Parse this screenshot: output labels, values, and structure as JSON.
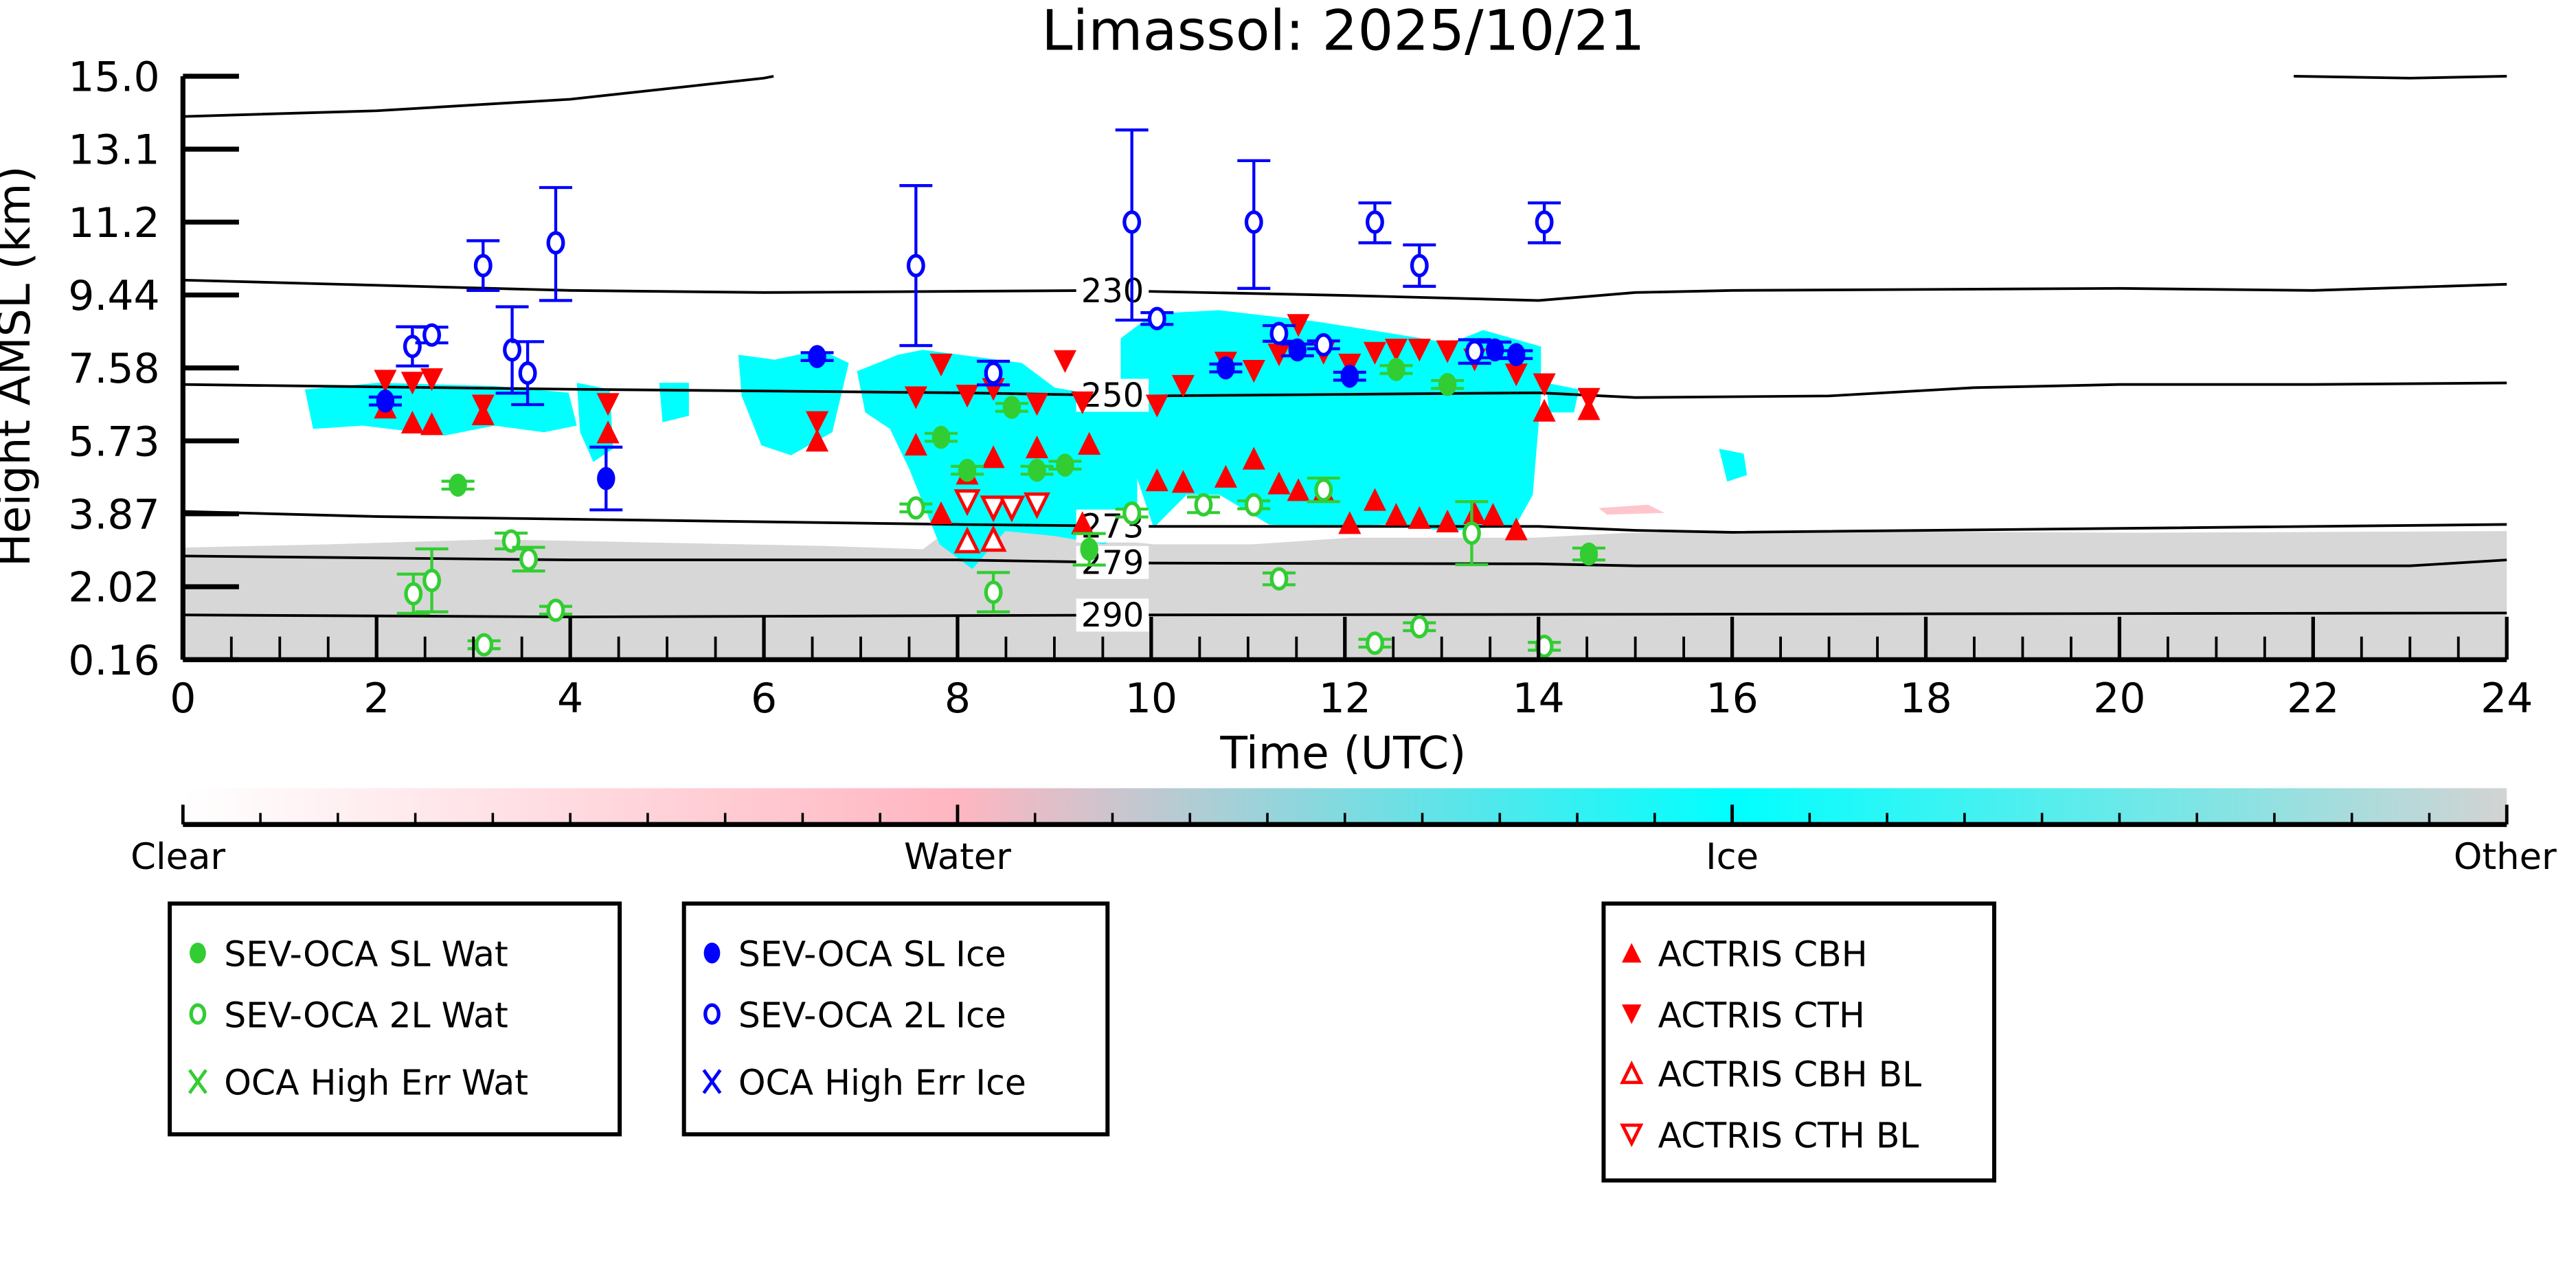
{
  "chart_data": {
    "type": "scatter",
    "title": "Limassol: 2025/10/21",
    "xlabel": "Time (UTC)",
    "ylabel": "Height AMSL (km)",
    "xlim": [
      0,
      24
    ],
    "xticks": [
      0,
      2,
      4,
      6,
      8,
      10,
      12,
      14,
      16,
      18,
      20,
      22,
      24
    ],
    "xtick_labels": [
      "0",
      "2",
      "4",
      "6",
      "8",
      "10",
      "12",
      "14",
      "16",
      "18",
      "20",
      "22",
      "24"
    ],
    "yticks": [
      0.16,
      2.02,
      3.87,
      5.73,
      7.58,
      9.44,
      11.2,
      13.1,
      15.0
    ],
    "ytick_labels": [
      "0.16",
      "2.02",
      "3.87",
      "5.73",
      "7.58",
      "9.44",
      "11.2",
      "13.1",
      "15.0"
    ],
    "ylim": [
      0.16,
      15.0
    ],
    "colors": {
      "water": "#32cd32",
      "ice": "#0000ff",
      "actris": "#ff0000",
      "cb_clear": "#ffffff",
      "cb_water": "#ffb6c1",
      "cb_ice": "#00ffff",
      "cb_other": "#d3d3d3"
    },
    "series": [
      {
        "name": "SEV-OCA SL Wat",
        "marker": "filled-circle",
        "color": "#32cd32",
        "points": [
          [
            2.84,
            4.6,
            0.1
          ],
          [
            7.83,
            5.82,
            0.1
          ],
          [
            8.1,
            4.98,
            0.1
          ],
          [
            8.56,
            6.58,
            0.1
          ],
          [
            8.82,
            4.98,
            0.1
          ],
          [
            9.11,
            5.11,
            0.1
          ],
          [
            9.36,
            2.97,
            0.4
          ],
          [
            12.53,
            7.54,
            0.1
          ],
          [
            13.06,
            7.16,
            0.1
          ],
          [
            14.52,
            2.85,
            0.15
          ]
        ]
      },
      {
        "name": "SEV-OCA 2L Wat",
        "marker": "open-circle",
        "color": "#32cd32",
        "points": [
          [
            2.38,
            1.84,
            0.5
          ],
          [
            2.57,
            2.18,
            0.8
          ],
          [
            3.11,
            0.54,
            0.1
          ],
          [
            3.39,
            3.18,
            0.2
          ],
          [
            3.57,
            2.72,
            0.3
          ],
          [
            3.85,
            1.42,
            0.1
          ],
          [
            7.57,
            4.02,
            0.1
          ],
          [
            8.37,
            1.88,
            0.5
          ],
          [
            9.8,
            3.89,
            0.1
          ],
          [
            10.54,
            4.1,
            0.2
          ],
          [
            11.06,
            4.1,
            0.1
          ],
          [
            11.32,
            2.22,
            0.15
          ],
          [
            11.78,
            4.48,
            0.3
          ],
          [
            12.31,
            0.58,
            0.1
          ],
          [
            12.77,
            1.0,
            0.1
          ],
          [
            13.31,
            3.38,
            0.8
          ],
          [
            14.06,
            0.5,
            0.1
          ]
        ]
      },
      {
        "name": "OCA High Err Wat",
        "marker": "x",
        "color": "#32cd32",
        "points": []
      },
      {
        "name": "SEV-OCA SL Ice",
        "marker": "filled-circle",
        "color": "#0000ff",
        "points": [
          [
            2.09,
            6.74,
            0.1
          ],
          [
            4.37,
            4.77,
            0.8
          ],
          [
            6.55,
            7.87,
            0.1
          ],
          [
            10.77,
            7.58,
            0.1
          ],
          [
            11.51,
            8.04,
            0.15
          ],
          [
            12.05,
            7.37,
            0.1
          ],
          [
            13.55,
            8.04,
            0.2
          ],
          [
            13.77,
            7.92,
            0.1
          ]
        ]
      },
      {
        "name": "SEV-OCA 2L Ice",
        "marker": "open-circle",
        "color": "#0000ff",
        "points": [
          [
            2.37,
            8.13,
            0.5
          ],
          [
            2.57,
            8.42,
            0.2
          ],
          [
            3.1,
            10.15,
            0.6
          ],
          [
            3.4,
            8.04,
            1.1
          ],
          [
            3.56,
            7.45,
            0.8
          ],
          [
            3.85,
            10.7,
            1.4
          ],
          [
            7.57,
            10.15,
            2.0
          ],
          [
            8.37,
            7.45,
            0.3
          ],
          [
            9.8,
            11.2,
            2.4
          ],
          [
            10.06,
            8.84,
            0.15
          ],
          [
            11.06,
            11.2,
            1.6
          ],
          [
            11.32,
            8.46,
            0.2
          ],
          [
            11.78,
            8.17,
            0.1
          ],
          [
            12.31,
            11.2,
            0.5
          ],
          [
            12.77,
            10.15,
            0.5
          ],
          [
            13.34,
            8.0,
            0.3
          ],
          [
            14.06,
            11.2,
            0.5
          ]
        ]
      },
      {
        "name": "OCA High Err Ice",
        "marker": "x",
        "color": "#0000ff",
        "points": []
      },
      {
        "name": "ACTRIS CBH",
        "marker": "filled-triangle-up",
        "color": "#ff0000",
        "points": [
          [
            2.09,
            6.58
          ],
          [
            2.37,
            6.2
          ],
          [
            2.57,
            6.16
          ],
          [
            3.1,
            6.41
          ],
          [
            4.39,
            5.95
          ],
          [
            6.55,
            5.74
          ],
          [
            7.57,
            5.64
          ],
          [
            7.83,
            3.89
          ],
          [
            8.1,
            4.9
          ],
          [
            8.37,
            5.32
          ],
          [
            8.82,
            5.57
          ],
          [
            9.29,
            3.64
          ],
          [
            9.36,
            5.66
          ],
          [
            10.06,
            4.73
          ],
          [
            10.33,
            4.69
          ],
          [
            10.77,
            4.82
          ],
          [
            11.06,
            5.28
          ],
          [
            11.32,
            4.65
          ],
          [
            11.52,
            4.48
          ],
          [
            11.78,
            4.44
          ],
          [
            12.05,
            3.64
          ],
          [
            12.31,
            4.23
          ],
          [
            12.53,
            3.85
          ],
          [
            12.77,
            3.77
          ],
          [
            13.06,
            3.68
          ],
          [
            13.34,
            3.89
          ],
          [
            13.53,
            3.85
          ],
          [
            13.77,
            3.48
          ],
          [
            14.06,
            6.5
          ],
          [
            14.52,
            6.54
          ]
        ]
      },
      {
        "name": "ACTRIS CTH",
        "marker": "filled-triangle-down",
        "color": "#ff0000",
        "points": [
          [
            2.09,
            7.25
          ],
          [
            2.37,
            7.2
          ],
          [
            2.57,
            7.29
          ],
          [
            3.1,
            6.62
          ],
          [
            4.39,
            6.66
          ],
          [
            6.55,
            6.2
          ],
          [
            7.57,
            6.83
          ],
          [
            7.83,
            7.66
          ],
          [
            8.1,
            6.87
          ],
          [
            8.37,
            7.04
          ],
          [
            8.82,
            6.66
          ],
          [
            9.11,
            7.75
          ],
          [
            9.29,
            6.7
          ],
          [
            10.06,
            6.62
          ],
          [
            10.33,
            7.12
          ],
          [
            10.77,
            7.71
          ],
          [
            11.06,
            7.5
          ],
          [
            11.32,
            7.92
          ],
          [
            11.52,
            8.67
          ],
          [
            11.78,
            7.96
          ],
          [
            12.05,
            7.66
          ],
          [
            12.31,
            7.96
          ],
          [
            12.53,
            8.04
          ],
          [
            12.77,
            8.04
          ],
          [
            13.06,
            8.0
          ],
          [
            13.34,
            7.79
          ],
          [
            13.77,
            7.41
          ],
          [
            14.06,
            7.16
          ],
          [
            14.52,
            6.79
          ]
        ]
      },
      {
        "name": "ACTRIS CBH BL",
        "marker": "open-triangle-up",
        "color": "#ff0000",
        "points": [
          [
            8.1,
            3.18
          ],
          [
            8.37,
            3.22
          ]
        ]
      },
      {
        "name": "ACTRIS CTH BL",
        "marker": "open-triangle-down",
        "color": "#ff0000",
        "points": [
          [
            8.1,
            4.18
          ],
          [
            8.37,
            4.02
          ],
          [
            8.56,
            4.02
          ],
          [
            8.82,
            4.1
          ]
        ]
      }
    ],
    "contours": [
      {
        "label": "",
        "points": [
          [
            0,
            13.95
          ],
          [
            2,
            14.1
          ],
          [
            4,
            14.4
          ],
          [
            6,
            14.95
          ],
          [
            6.1,
            15.0
          ]
        ]
      },
      {
        "label": "",
        "points": [
          [
            21.8,
            15.0
          ],
          [
            23,
            14.95
          ],
          [
            24,
            15.0
          ]
        ]
      },
      {
        "label": "230",
        "points": [
          [
            0,
            9.8
          ],
          [
            4,
            9.55
          ],
          [
            6,
            9.5
          ],
          [
            9.5,
            9.55
          ],
          [
            12,
            9.43
          ],
          [
            14,
            9.3
          ],
          [
            15,
            9.5
          ],
          [
            16,
            9.55
          ],
          [
            20,
            9.6
          ],
          [
            22,
            9.55
          ],
          [
            24,
            9.7
          ]
        ]
      },
      {
        "label": "250",
        "points": [
          [
            0,
            7.16
          ],
          [
            4,
            7.04
          ],
          [
            8,
            6.95
          ],
          [
            10,
            6.87
          ],
          [
            14,
            6.95
          ],
          [
            15,
            6.83
          ],
          [
            17,
            6.87
          ],
          [
            18.5,
            7.08
          ],
          [
            20,
            7.16
          ],
          [
            22,
            7.16
          ],
          [
            24,
            7.2
          ]
        ]
      },
      {
        "label": "273",
        "points": [
          [
            0,
            3.93
          ],
          [
            2,
            3.8
          ],
          [
            8,
            3.6
          ],
          [
            10,
            3.55
          ],
          [
            14,
            3.55
          ],
          [
            15,
            3.45
          ],
          [
            16,
            3.4
          ],
          [
            20,
            3.5
          ],
          [
            24,
            3.6
          ]
        ]
      },
      {
        "label": "279",
        "points": [
          [
            0,
            2.8
          ],
          [
            4,
            2.7
          ],
          [
            8,
            2.7
          ],
          [
            10,
            2.62
          ],
          [
            14,
            2.6
          ],
          [
            15,
            2.55
          ],
          [
            23,
            2.55
          ],
          [
            24,
            2.7
          ]
        ]
      },
      {
        "label": "290",
        "points": [
          [
            0,
            1.3
          ],
          [
            4,
            1.25
          ],
          [
            10,
            1.3
          ],
          [
            24,
            1.35
          ]
        ]
      }
    ],
    "contour_label_time": 9.6,
    "colorbar": {
      "labels": [
        "Clear",
        "Water",
        "Ice",
        "Other"
      ]
    },
    "legend_groups": [
      [
        0,
        1,
        2
      ],
      [
        3,
        4,
        5
      ],
      [
        6,
        7,
        8,
        9
      ]
    ]
  }
}
